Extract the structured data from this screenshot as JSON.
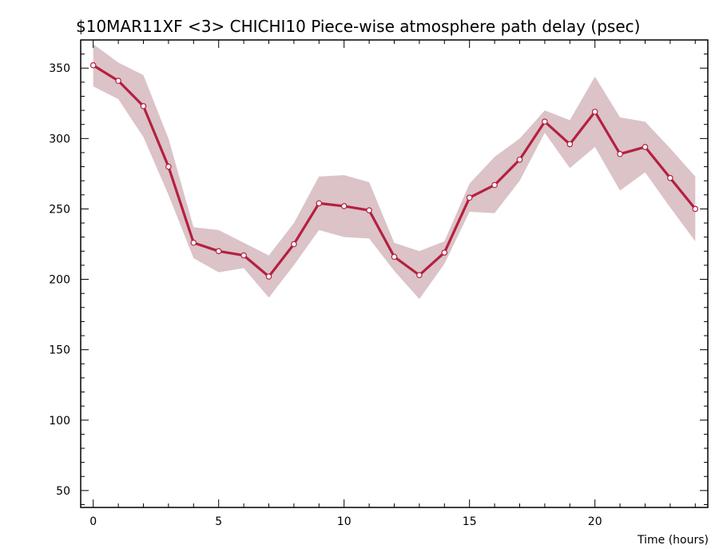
{
  "chart_data": {
    "type": "line",
    "title": "$10MAR11XF <3>   CHICHI10  Piece-wise atmosphere path delay (psec)",
    "xlabel": "Time (hours)",
    "ylabel": "",
    "xlim": [
      -0.5,
      24.5
    ],
    "ylim": [
      38,
      370
    ],
    "xticks": [
      0,
      5,
      10,
      15,
      20
    ],
    "yticks": [
      50,
      100,
      150,
      200,
      250,
      300,
      350
    ],
    "grid": false,
    "x": [
      0,
      1,
      2,
      3,
      4,
      5,
      6,
      7,
      8,
      9,
      10,
      11,
      12,
      13,
      14,
      15,
      16,
      17,
      18,
      19,
      20,
      21,
      22,
      23,
      24
    ],
    "series": [
      {
        "values": [
          352,
          341,
          323,
          280,
          226,
          220,
          217,
          202,
          225,
          254,
          252,
          249,
          216,
          203,
          219,
          258,
          267,
          285,
          312,
          296,
          319,
          289,
          294,
          272,
          250
        ],
        "upper": [
          367,
          354,
          345,
          300,
          237,
          235,
          226,
          217,
          240,
          273,
          274,
          269,
          226,
          220,
          227,
          268,
          287,
          300,
          320,
          313,
          344,
          315,
          312,
          293,
          273
        ],
        "lower": [
          337,
          328,
          301,
          260,
          215,
          205,
          208,
          187,
          210,
          235,
          230,
          229,
          206,
          186,
          211,
          248,
          247,
          270,
          304,
          279,
          294,
          263,
          276,
          251,
          227
        ]
      }
    ],
    "colors": {
      "line": "#b42040",
      "band": "#dbc3c8",
      "marker_fill": "#ffffff",
      "axis": "#000000"
    }
  }
}
